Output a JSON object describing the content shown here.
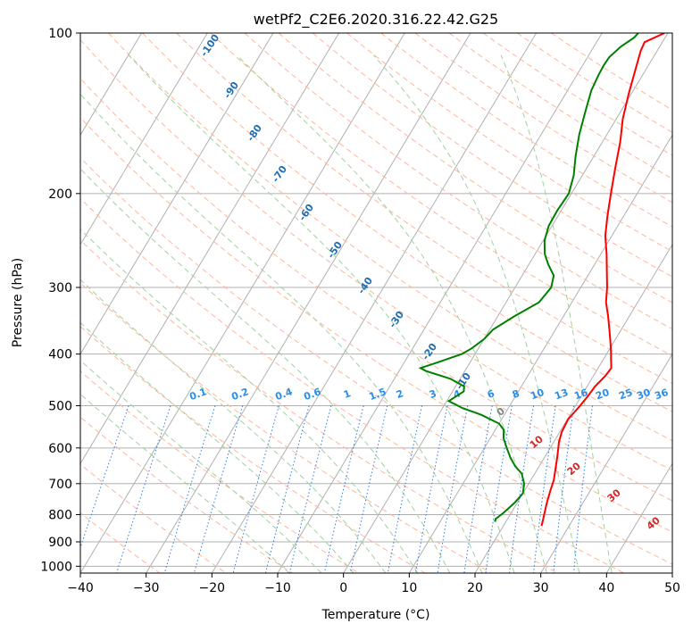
{
  "chart_data": {
    "type": "line",
    "title": "wetPf2_C2E6.2020.316.22.42.G25",
    "xlabel": "Temperature (°C)",
    "ylabel": "Pressure (hPa)",
    "xlim": [
      -40,
      50
    ],
    "ylim": [
      1030,
      100
    ],
    "y_scale": "log",
    "x_ticks": [
      -40,
      -30,
      -20,
      -10,
      0,
      10,
      20,
      30,
      40,
      50
    ],
    "y_ticks": [
      100,
      200,
      300,
      400,
      500,
      600,
      700,
      800,
      900,
      1000
    ],
    "grid": true,
    "skew": true,
    "series": [
      {
        "color": "#ff0000",
        "points": [
          [
            25.8,
            840
          ],
          [
            25.5,
            820
          ],
          [
            25.0,
            790
          ],
          [
            24.5,
            760
          ],
          [
            23.9,
            720
          ],
          [
            23.5,
            690
          ],
          [
            22.8,
            660
          ],
          [
            21.8,
            620
          ],
          [
            20.8,
            585
          ],
          [
            20.3,
            560
          ],
          [
            20.1,
            530
          ],
          [
            20.7,
            500
          ],
          [
            21.0,
            480
          ],
          [
            21.2,
            460
          ],
          [
            21.8,
            440
          ],
          [
            22.0,
            425
          ],
          [
            21.2,
            410
          ],
          [
            20.4,
            395
          ],
          [
            19.5,
            380
          ],
          [
            18.2,
            360
          ],
          [
            16.8,
            340
          ],
          [
            15.2,
            320
          ],
          [
            14.0,
            300
          ],
          [
            12.5,
            280
          ],
          [
            10.9,
            260
          ],
          [
            9.0,
            240
          ],
          [
            7.5,
            220
          ],
          [
            6.0,
            200
          ],
          [
            4.4,
            180
          ],
          [
            2.7,
            160
          ],
          [
            1.0,
            145
          ],
          [
            -0.4,
            130
          ],
          [
            -1.5,
            118
          ],
          [
            -2.5,
            108
          ],
          [
            -2.7,
            104
          ],
          [
            -0.5,
            100
          ]
        ]
      },
      {
        "color": "#008000",
        "points": [
          [
            18.3,
            825
          ],
          [
            18.2,
            815
          ],
          [
            18.8,
            795
          ],
          [
            19.6,
            760
          ],
          [
            20.0,
            730
          ],
          [
            19.3,
            700
          ],
          [
            18.0,
            670
          ],
          [
            16.4,
            650
          ],
          [
            14.8,
            625
          ],
          [
            13.4,
            600
          ],
          [
            12.0,
            575
          ],
          [
            11.3,
            555
          ],
          [
            10.0,
            540
          ],
          [
            6.5,
            520
          ],
          [
            3.0,
            505
          ],
          [
            0.3,
            490
          ],
          [
            1.0,
            480
          ],
          [
            1.7,
            470
          ],
          [
            1.3,
            460
          ],
          [
            -1.5,
            445
          ],
          [
            -6.0,
            430
          ],
          [
            -7.0,
            425
          ],
          [
            -5.0,
            415
          ],
          [
            -2.0,
            400
          ],
          [
            -1.0,
            390
          ],
          [
            0.0,
            375
          ],
          [
            0.5,
            360
          ],
          [
            2.5,
            340
          ],
          [
            5.0,
            320
          ],
          [
            5.5,
            300
          ],
          [
            4.8,
            285
          ],
          [
            3.0,
            272
          ],
          [
            1.5,
            260
          ],
          [
            0.2,
            245
          ],
          [
            -0.5,
            230
          ],
          [
            -0.6,
            215
          ],
          [
            -0.4,
            200
          ],
          [
            -1.3,
            185
          ],
          [
            -2.8,
            170
          ],
          [
            -4.2,
            155
          ],
          [
            -5.4,
            140
          ],
          [
            -6.4,
            128
          ],
          [
            -6.7,
            120
          ],
          [
            -6.8,
            115
          ],
          [
            -6.7,
            111
          ],
          [
            -5.9,
            106
          ],
          [
            -4.7,
            102
          ],
          [
            -4.5,
            100
          ]
        ]
      }
    ],
    "dry_adiabat_labels": [
      "-100",
      "-90",
      "-80",
      "-70",
      "-60",
      "-50",
      "-40",
      "-30",
      "-20",
      "-10"
    ],
    "mixing_ratio_labels": [
      "0.1",
      "0.2",
      "0.4",
      "0.6",
      "1",
      "1.5",
      "2",
      "3",
      "4",
      "6",
      "8",
      "10",
      "13",
      "16",
      "20",
      "25",
      "30",
      "36"
    ],
    "moist_adiabat_labels": [
      "0",
      "10",
      "20",
      "30",
      "40"
    ]
  }
}
